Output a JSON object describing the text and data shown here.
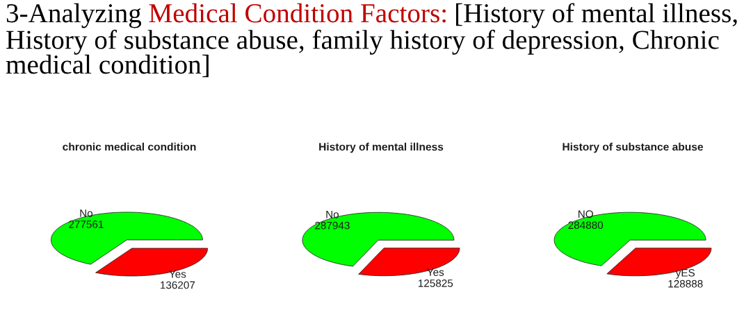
{
  "chart_data": [
    {
      "type": "other",
      "annotations": [
        "3-Analyzing",
        "Medical Condition Factors:",
        "[History of mental illness,",
        "History of substance abuse, family history of depression, Chronic medical condition]"
      ],
      "colors": [
        "#000000",
        "#c00000",
        "#000000",
        "#000000"
      ]
    },
    {
      "type": "pie",
      "title": "chronic medical condition",
      "categories": [
        "No",
        "Yes"
      ],
      "values": [
        277561,
        136207
      ],
      "colors": [
        "#00ff00",
        "#ff0000"
      ],
      "data_labels": true
    },
    {
      "type": "pie",
      "title": "History of mental illness",
      "categories": [
        "No",
        "Yes"
      ],
      "values": [
        287943,
        125825
      ],
      "colors": [
        "#00ff00",
        "#ff0000"
      ],
      "data_labels": true
    },
    {
      "type": "pie",
      "title": "History of substance abuse",
      "categories": [
        "NO",
        "yES"
      ],
      "values": [
        284880,
        128888
      ],
      "colors": [
        "#00ff00",
        "#ff0000"
      ],
      "data_labels": true
    }
  ]
}
